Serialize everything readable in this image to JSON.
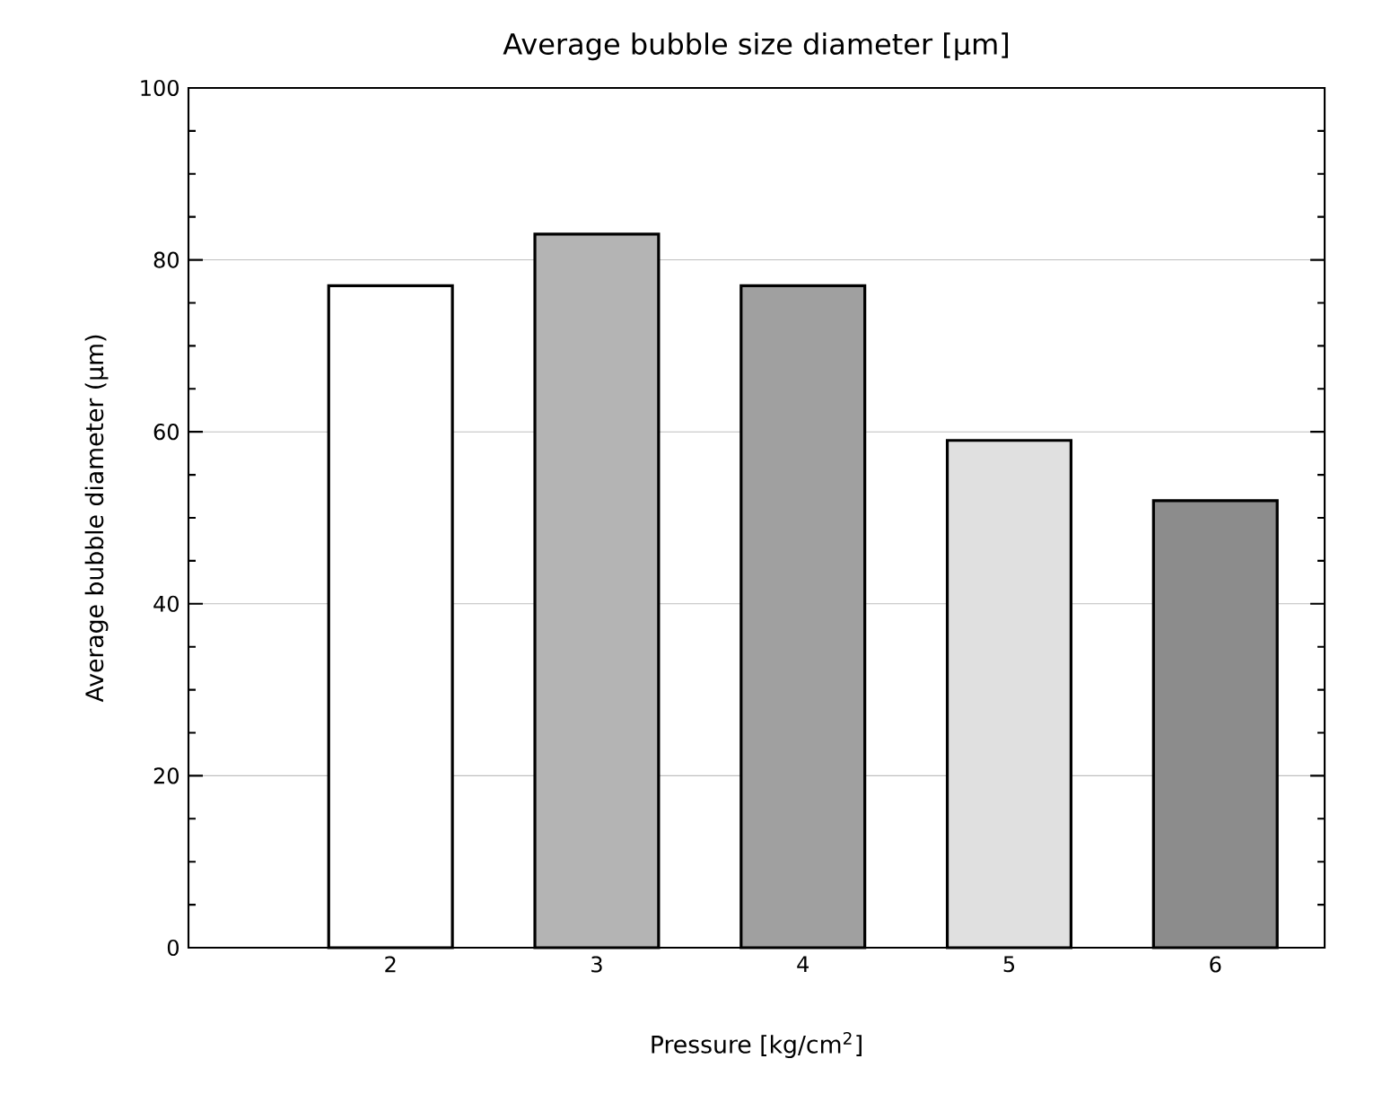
{
  "chart_data": {
    "type": "bar",
    "title": "Average bubble size diameter [μm]",
    "xlabel": "Pressure [kg/cm$^{2}$]",
    "ylabel": "Average bubble diameter (μm)",
    "categories": [
      "2",
      "3",
      "4",
      "5",
      "6"
    ],
    "values": [
      77,
      83,
      77,
      59,
      52
    ],
    "colors": [
      "#ffffff",
      "#b4b4b4",
      "#a0a0a0",
      "#e0e0e0",
      "#8c8c8c"
    ],
    "ylim": [
      0,
      100
    ],
    "yticks": [
      0,
      20,
      40,
      60,
      80,
      100
    ],
    "grid": "y"
  }
}
